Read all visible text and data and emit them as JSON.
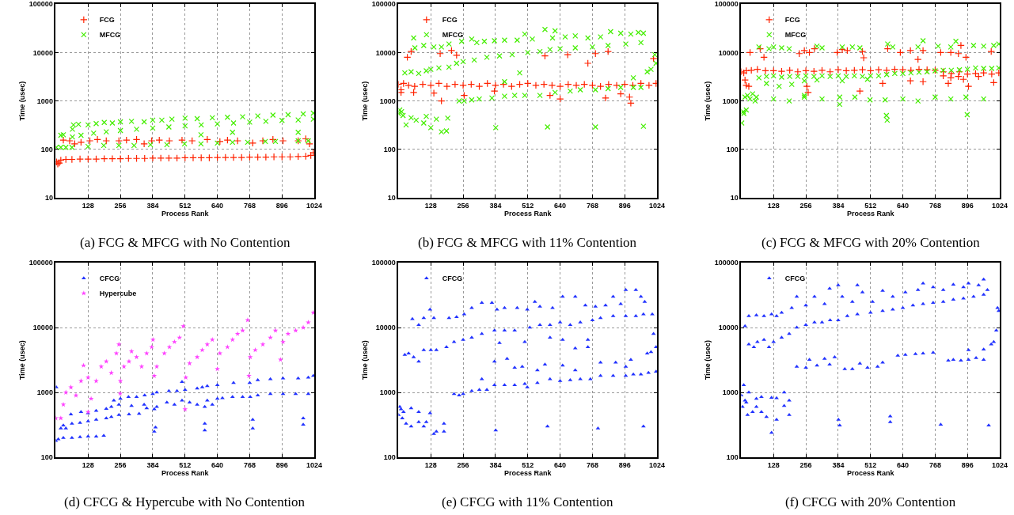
{
  "chart_data": [
    {
      "type": "scatter",
      "title": "(a) FCG & MFCG with No Contention",
      "xlabel": "Process Rank",
      "ylabel": "Time (usec)",
      "xlim": [
        0,
        1024
      ],
      "xticks": [
        128,
        256,
        384,
        512,
        640,
        768,
        896,
        1024
      ],
      "ylim": [
        10,
        100000
      ],
      "yticks": [
        10,
        100,
        1000,
        10000,
        100000
      ],
      "log": "y",
      "grid": true,
      "legend": "top left",
      "series": [
        {
          "name": "FCG",
          "color": "#ff2200",
          "marker": "cross",
          "x": [
            3,
            8,
            14,
            20,
            40,
            64,
            96,
            128,
            160,
            192,
            224,
            256,
            288,
            320,
            352,
            384,
            416,
            448,
            480,
            512,
            544,
            576,
            608,
            640,
            672,
            704,
            736,
            768,
            800,
            832,
            864,
            896,
            928,
            960,
            990,
            1010,
            1020,
            30,
            55,
            75,
            100,
            135,
            165,
            200,
            250,
            280,
            320,
            350,
            380,
            410,
            450,
            500,
            540,
            600,
            650,
            680,
            720,
            780,
            820,
            860,
            900,
            960,
            990,
            1005
          ],
          "values": [
            55,
            50,
            52,
            60,
            62,
            62,
            63,
            63,
            63,
            64,
            64,
            64,
            65,
            65,
            65,
            66,
            66,
            66,
            66,
            67,
            67,
            67,
            67,
            68,
            68,
            68,
            68,
            69,
            69,
            69,
            70,
            70,
            70,
            71,
            72,
            75,
            85,
            155,
            150,
            130,
            140,
            150,
            160,
            150,
            150,
            155,
            160,
            130,
            150,
            155,
            150,
            155,
            150,
            160,
            145,
            155,
            150,
            135,
            150,
            160,
            150,
            150,
            165,
            130
          ]
        },
        {
          "name": "MFCG",
          "color": "#44ee00",
          "marker": "x",
          "x": [
            2,
            20,
            40,
            64,
            20,
            30,
            66,
            100,
            150,
            200,
            256,
            320,
            384,
            448,
            512,
            576,
            640,
            704,
            768,
            832,
            896,
            960,
            1020,
            66,
            70,
            90,
            128,
            160,
            192,
            224,
            256,
            300,
            350,
            384,
            420,
            460,
            512,
            560,
            620,
            680,
            740,
            800,
            860,
            920,
            980,
            1020,
            128,
            190,
            250,
            310,
            375,
            440,
            510,
            575,
            640,
            700,
            760,
            830,
            870,
            960,
            1000,
            960,
            700,
            575
          ],
          "values": [
            110,
            110,
            110,
            110,
            195,
            200,
            180,
            195,
            215,
            230,
            245,
            260,
            275,
            290,
            305,
            320,
            335,
            350,
            365,
            380,
            395,
            405,
            420,
            260,
            320,
            330,
            320,
            340,
            360,
            350,
            370,
            380,
            370,
            400,
            400,
            420,
            440,
            430,
            450,
            460,
            470,
            490,
            510,
            520,
            540,
            560,
            115,
            120,
            120,
            120,
            125,
            125,
            130,
            130,
            135,
            140,
            140,
            145,
            145,
            150,
            150,
            225,
            225,
            200
          ]
        }
      ]
    },
    {
      "type": "scatter",
      "title": "(b) FCG & MFCG with 11% Contention",
      "xlabel": "Process Rank",
      "ylabel": "Time (usec)",
      "xlim": [
        0,
        1024
      ],
      "xticks": [
        128,
        256,
        384,
        512,
        640,
        768,
        896,
        1024
      ],
      "ylim": [
        10,
        100000
      ],
      "yticks": [
        10,
        100,
        1000,
        10000,
        100000
      ],
      "log": "y",
      "grid": true,
      "legend": "top left",
      "series": [
        {
          "name": "FCG",
          "color": "#ff2200",
          "marker": "cross",
          "x": [
            0,
            10,
            20,
            40,
            64,
            96,
            128,
            160,
            192,
            224,
            256,
            288,
            320,
            352,
            384,
            416,
            448,
            480,
            512,
            544,
            576,
            608,
            640,
            672,
            704,
            736,
            768,
            800,
            832,
            864,
            896,
            928,
            960,
            992,
            1020,
            10,
            60,
            140,
            170,
            260,
            380,
            600,
            640,
            820,
            880,
            915,
            920,
            35,
            50,
            165,
            210,
            230,
            580,
            670,
            750,
            780,
            830,
            1010
          ],
          "values": [
            2200,
            1700,
            2300,
            2100,
            2000,
            2200,
            2100,
            2300,
            2000,
            2200,
            2100,
            2200,
            2000,
            2300,
            2100,
            2200,
            2000,
            2200,
            2300,
            2100,
            2200,
            2100,
            2000,
            2200,
            2100,
            2200,
            2100,
            2000,
            2200,
            2100,
            2200,
            2100,
            2300,
            2100,
            2300,
            1500,
            1500,
            1450,
            1000,
            1300,
            1600,
            1300,
            1100,
            1150,
            1400,
            1200,
            900,
            8000,
            10500,
            9500,
            11000,
            8800,
            8500,
            9000,
            6000,
            9500,
            10500,
            7500
          ]
        },
        {
          "name": "MFCG",
          "color": "#44ee00",
          "marker": "x",
          "x": [
            0,
            5,
            12,
            18,
            30,
            50,
            70,
            100,
            110,
            128,
            150,
            170,
            190,
            195,
            25,
            50,
            80,
            110,
            128,
            160,
            200,
            230,
            256,
            300,
            350,
            400,
            450,
            512,
            560,
            600,
            640,
            700,
            768,
            830,
            900,
            960,
            985,
            1000,
            1020,
            1015,
            60,
            65,
            100,
            140,
            170,
            200,
            250,
            290,
            310,
            340,
            380,
            420,
            470,
            500,
            530,
            580,
            610,
            620,
            660,
            700,
            750,
            800,
            840,
            880,
            920,
            950,
            970,
            240,
            260,
            290,
            320,
            370,
            420,
            460,
            500,
            560,
            620,
            680,
            720,
            780,
            830,
            880,
            930,
            960,
            385,
            590,
            780,
            970,
            480,
            930,
            420
          ],
          "values": [
            550,
            650,
            600,
            500,
            320,
            450,
            400,
            350,
            480,
            280,
            420,
            230,
            240,
            440,
            3800,
            4000,
            3700,
            4200,
            4500,
            4800,
            5000,
            6000,
            6500,
            7000,
            8000,
            8500,
            9000,
            10000,
            10500,
            11500,
            12000,
            12500,
            13000,
            14000,
            15000,
            16000,
            4000,
            4500,
            6000,
            9000,
            20000,
            12500,
            14000,
            13000,
            13000,
            15000,
            17000,
            19000,
            16000,
            17000,
            17500,
            18000,
            18000,
            24000,
            19000,
            30000,
            20000,
            28000,
            21000,
            22000,
            20000,
            21000,
            27000,
            25000,
            24000,
            26000,
            25000,
            1000,
            1000,
            1050,
            1100,
            1150,
            1250,
            1300,
            1300,
            1300,
            1500,
            1600,
            1700,
            1700,
            1800,
            1900,
            1900,
            1900,
            280,
            290,
            290,
            300,
            3800,
            3000,
            2500
          ]
        }
      ]
    },
    {
      "type": "scatter",
      "title": "(c) FCG & MFCG with 20% Contention",
      "xlabel": "Process Rank",
      "ylabel": "Time (usec)",
      "xlim": [
        0,
        1024
      ],
      "xticks": [
        128,
        256,
        384,
        512,
        640,
        768,
        896,
        1024
      ],
      "ylim": [
        10,
        100000
      ],
      "yticks": [
        10,
        100,
        1000,
        10000,
        100000
      ],
      "log": "y",
      "grid": true,
      "legend": "top left",
      "series": [
        {
          "name": "FCG",
          "color": "#ff2200",
          "marker": "cross",
          "x": [
            0,
            10,
            20,
            40,
            64,
            96,
            128,
            160,
            192,
            224,
            256,
            288,
            320,
            352,
            384,
            416,
            448,
            480,
            512,
            544,
            576,
            608,
            640,
            672,
            704,
            736,
            768,
            800,
            832,
            864,
            896,
            928,
            960,
            992,
            1020,
            800,
            830,
            860,
            880,
            940,
            35,
            75,
            90,
            230,
            250,
            270,
            290,
            380,
            400,
            420,
            480,
            485,
            580,
            630,
            670,
            700,
            720,
            790,
            830,
            860,
            870,
            890,
            990,
            15,
            20,
            30,
            260,
            265,
            470,
            560,
            670,
            720,
            820,
            900,
            1000
          ],
          "values": [
            4000,
            3800,
            4200,
            4300,
            4500,
            4200,
            4200,
            4100,
            4300,
            4000,
            4200,
            4100,
            4300,
            4000,
            4400,
            4200,
            4300,
            4400,
            4200,
            4400,
            4300,
            4500,
            4400,
            4300,
            4500,
            4400,
            4300,
            4000,
            3700,
            4000,
            3600,
            3700,
            3800,
            3600,
            3800,
            3300,
            3000,
            3200,
            2800,
            3200,
            10000,
            12000,
            8000,
            9500,
            11000,
            10000,
            12000,
            10000,
            11500,
            11000,
            10500,
            7800,
            12000,
            10000,
            11000,
            7200,
            11000,
            10000,
            10000,
            9500,
            14000,
            8000,
            10500,
            2700,
            2100,
            2000,
            2000,
            1500,
            1600,
            2300,
            2600,
            2500,
            2300,
            2000,
            2400
          ]
        },
        {
          "name": "MFCG",
          "color": "#44ee00",
          "marker": "x",
          "x": [
            2,
            8,
            10,
            15,
            25,
            35,
            45,
            55,
            60,
            20,
            70,
            100,
            128,
            160,
            192,
            224,
            256,
            288,
            320,
            352,
            384,
            416,
            448,
            480,
            512,
            544,
            576,
            608,
            640,
            672,
            704,
            736,
            768,
            800,
            832,
            864,
            896,
            928,
            960,
            992,
            1020,
            100,
            150,
            200,
            250,
            300,
            400,
            500,
            250,
            70,
            110,
            128,
            160,
            190,
            300,
            320,
            400,
            440,
            470,
            580,
            600,
            700,
            720,
            780,
            830,
            850,
            920,
            960,
            1000,
            1020,
            128,
            190,
            250,
            320,
            390,
            450,
            510,
            570,
            640,
            700,
            768,
            830,
            890,
            960,
            575,
            578,
            895,
            390
          ],
          "values": [
            350,
            600,
            550,
            1200,
            1300,
            1100,
            1400,
            1000,
            1200,
            650,
            3000,
            3200,
            3300,
            3100,
            3200,
            3200,
            3300,
            3200,
            3300,
            3200,
            3300,
            3200,
            3300,
            3200,
            3300,
            3300,
            3500,
            3700,
            3700,
            3800,
            3900,
            4000,
            4200,
            4300,
            4300,
            4400,
            4500,
            4800,
            4700,
            4700,
            4800,
            2300,
            2000,
            2200,
            2600,
            2700,
            2600,
            2800,
            1300,
            13000,
            12000,
            13000,
            12500,
            12000,
            13500,
            12500,
            13000,
            13000,
            12500,
            15000,
            13000,
            13000,
            17500,
            13500,
            13000,
            17000,
            14000,
            13500,
            14000,
            15000,
            1100,
            1000,
            1200,
            1100,
            1200,
            1200,
            1050,
            1050,
            1100,
            1000,
            1200,
            1100,
            1200,
            1100,
            500,
            400,
            520,
            850
          ]
        }
      ]
    },
    {
      "type": "scatter",
      "title": "(d) CFCG & Hypercube with No Contention",
      "xlabel": "Process Rank",
      "ylabel": "Time (usec)",
      "xlim": [
        0,
        1024
      ],
      "xticks": [
        128,
        256,
        384,
        512,
        640,
        768,
        896,
        1024
      ],
      "ylim": [
        100,
        100000
      ],
      "yticks": [
        100,
        1000,
        10000,
        100000
      ],
      "log": "y",
      "grid": true,
      "legend": "top left",
      "series": [
        {
          "name": "CFCG",
          "color": "#2233ff",
          "marker": "triangle",
          "x": [
            2,
            0,
            10,
            30,
            64,
            96,
            128,
            160,
            190,
            30,
            64,
            96,
            128,
            160,
            200,
            220,
            20,
            40,
            60,
            100,
            128,
            160,
            200,
            220,
            230,
            256,
            288,
            320,
            352,
            384,
            400,
            448,
            480,
            512,
            560,
            580,
            600,
            640,
            704,
            768,
            800,
            850,
            900,
            960,
            1000,
            1020,
            250,
            290,
            330,
            360,
            250,
            300,
            350,
            390,
            400,
            440,
            470,
            500,
            530,
            560,
            590,
            600,
            620,
            640,
            660,
            700,
            740,
            770,
            800,
            850,
            900,
            950,
            1000,
            390,
            395,
            590,
            590,
            780,
            780,
            980,
            980,
            500
          ],
          "values": [
            1200,
            180,
            190,
            200,
            200,
            205,
            210,
            210,
            215,
            310,
            330,
            340,
            360,
            380,
            400,
            420,
            280,
            280,
            460,
            500,
            480,
            520,
            560,
            600,
            750,
            800,
            850,
            850,
            900,
            950,
            1000,
            1050,
            1050,
            1100,
            1150,
            1200,
            1250,
            1300,
            1400,
            1400,
            1550,
            1600,
            1650,
            1650,
            1700,
            1800,
            450,
            460,
            470,
            570,
            650,
            620,
            650,
            550,
            600,
            700,
            650,
            750,
            700,
            650,
            600,
            750,
            650,
            800,
            820,
            850,
            850,
            850,
            900,
            950,
            950,
            950,
            950,
            250,
            290,
            330,
            260,
            380,
            280,
            400,
            320,
            1450
          ]
        },
        {
          "name": "Hypercube",
          "color": "#ff44ff",
          "marker": "star",
          "x": [
            0,
            20,
            30,
            40,
            60,
            80,
            100,
            110,
            128,
            140,
            128,
            160,
            180,
            200,
            220,
            240,
            250,
            255,
            256,
            270,
            290,
            320,
            300,
            340,
            360,
            380,
            385,
            390,
            400,
            430,
            450,
            470,
            490,
            505,
            512,
            515,
            530,
            560,
            580,
            600,
            620,
            640,
            650,
            680,
            700,
            720,
            740,
            760,
            765,
            770,
            790,
            820,
            850,
            870,
            890,
            900,
            920,
            950,
            980,
            1000,
            1020
          ],
          "values": [
            400,
            400,
            650,
            1000,
            1200,
            900,
            1500,
            2600,
            1700,
            800,
            500,
            1500,
            2500,
            3000,
            2000,
            4000,
            5500,
            960,
            1500,
            2500,
            3000,
            3500,
            4300,
            2500,
            4000,
            5000,
            6500,
            1800,
            2500,
            4000,
            5000,
            6000,
            7000,
            10500,
            550,
            1700,
            2800,
            3500,
            4500,
            5500,
            6500,
            2300,
            4000,
            5000,
            6500,
            8000,
            9000,
            13000,
            1800,
            3500,
            4500,
            5500,
            7000,
            9000,
            3200,
            6000,
            8000,
            9000,
            10000,
            12000,
            17000
          ]
        }
      ]
    },
    {
      "type": "scatter",
      "title": "(e) CFCG with 11% Contention",
      "xlabel": "Process Rank",
      "ylabel": "Time (usec)",
      "xlim": [
        0,
        1024
      ],
      "xticks": [
        128,
        256,
        384,
        512,
        640,
        768,
        896,
        1024
      ],
      "ylim": [
        100,
        100000
      ],
      "yticks": [
        100,
        1000,
        10000,
        100000
      ],
      "log": "y",
      "grid": true,
      "legend": "top left",
      "series": [
        {
          "name": "CFCG",
          "color": "#2233ff",
          "marker": "triangle",
          "x": [
            0,
            5,
            10,
            15,
            20,
            30,
            50,
            50,
            80,
            80,
            100,
            110,
            125,
            140,
            150,
            180,
            180,
            25,
            40,
            60,
            80,
            100,
            128,
            150,
            190,
            220,
            256,
            290,
            330,
            380,
            420,
            460,
            520,
            560,
            600,
            640,
            680,
            720,
            768,
            800,
            850,
            900,
            940,
            970,
            985,
            1000,
            1020,
            1010,
            1005,
            55,
            80,
            100,
            125,
            140,
            200,
            230,
            260,
            290,
            330,
            370,
            390,
            420,
            470,
            510,
            540,
            560,
            610,
            650,
            700,
            740,
            780,
            820,
            850,
            880,
            900,
            940,
            960,
            975,
            220,
            240,
            256,
            290,
            320,
            350,
            380,
            420,
            460,
            500,
            510,
            550,
            600,
            640,
            680,
            720,
            760,
            800,
            850,
            900,
            930,
            960,
            990,
            1020,
            330,
            380,
            430,
            460,
            490,
            550,
            580,
            650,
            700,
            750,
            800,
            860,
            900,
            920,
            400,
            500,
            600,
            650,
            700,
            750,
            385,
            590,
            790,
            970
          ],
          "values": [
            450,
            600,
            550,
            400,
            500,
            330,
            570,
            300,
            500,
            350,
            300,
            350,
            480,
            230,
            250,
            330,
            250,
            3800,
            4000,
            3500,
            3000,
            4500,
            4500,
            4500,
            5000,
            6000,
            6500,
            7000,
            8000,
            9000,
            9000,
            9000,
            10000,
            11000,
            11000,
            12000,
            11000,
            12000,
            13000,
            14000,
            15000,
            15000,
            15000,
            16000,
            4000,
            4200,
            5000,
            8000,
            16000,
            13500,
            11000,
            14000,
            19000,
            14000,
            14000,
            14500,
            16000,
            20000,
            24000,
            24000,
            19000,
            20000,
            20000,
            19000,
            25000,
            21000,
            20000,
            30000,
            30000,
            22000,
            21000,
            22000,
            30000,
            23000,
            38000,
            38000,
            30000,
            25000,
            950,
            900,
            950,
            1050,
            1100,
            1100,
            1300,
            1300,
            1300,
            1350,
            1200,
            1400,
            1600,
            1500,
            1550,
            1600,
            1600,
            1800,
            1800,
            1800,
            1900,
            1900,
            2000,
            2100,
            1600,
            3000,
            3300,
            2400,
            2500,
            2200,
            2700,
            2600,
            2200,
            5000,
            2900,
            2900,
            2500,
            3200,
            5800,
            6000,
            7000,
            6500,
            4800,
            6500,
            260,
            300,
            280,
            300
          ]
        }
      ]
    },
    {
      "type": "scatter",
      "title": "(f) CFCG with 20% Contention",
      "xlabel": "Process Rank",
      "ylabel": "Time (usec)",
      "xlim": [
        0,
        1024
      ],
      "xticks": [
        128,
        256,
        384,
        512,
        640,
        768,
        896,
        1024
      ],
      "ylim": [
        100,
        100000
      ],
      "yticks": [
        100,
        1000,
        10000,
        100000
      ],
      "log": "y",
      "grid": true,
      "legend": "top left",
      "series": [
        {
          "name": "CFCG",
          "color": "#2233ff",
          "marker": "triangle",
          "x": [
            0,
            5,
            10,
            15,
            20,
            25,
            30,
            45,
            60,
            60,
            80,
            80,
            100,
            120,
            120,
            140,
            140,
            170,
            170,
            190,
            190,
            30,
            50,
            64,
            90,
            110,
            128,
            160,
            190,
            220,
            256,
            290,
            320,
            352,
            384,
            420,
            460,
            512,
            560,
            600,
            640,
            680,
            720,
            760,
            800,
            840,
            880,
            920,
            960,
            975,
            990,
            1000,
            1010,
            1015,
            1020,
            15,
            30,
            60,
            90,
            120,
            140,
            160,
            200,
            220,
            256,
            290,
            330,
            350,
            384,
            400,
            440,
            460,
            480,
            520,
            560,
            600,
            650,
            700,
            720,
            760,
            800,
            840,
            880,
            900,
            940,
            960,
            220,
            256,
            270,
            300,
            330,
            350,
            370,
            410,
            440,
            470,
            500,
            540,
            560,
            620,
            650,
            690,
            720,
            760,
            820,
            840,
            870,
            900,
            900,
            930,
            960,
            960,
            385,
            390,
            590,
            590,
            790,
            980
          ],
          "values": [
            900,
            600,
            1300,
            750,
            700,
            450,
            1000,
            500,
            800,
            600,
            850,
            500,
            420,
            830,
            240,
            820,
            380,
            1000,
            620,
            750,
            450,
            5500,
            5000,
            6000,
            6500,
            5000,
            6000,
            7000,
            8000,
            10000,
            11000,
            12000,
            12000,
            13000,
            13000,
            15000,
            16000,
            17000,
            18000,
            19000,
            20000,
            22000,
            23000,
            24000,
            25000,
            27000,
            28000,
            30000,
            32000,
            38000,
            5500,
            6000,
            9000,
            20000,
            18000,
            10500,
            15000,
            15500,
            15000,
            16000,
            15000,
            17000,
            20000,
            30000,
            22000,
            30000,
            23000,
            40000,
            45000,
            30000,
            25000,
            45000,
            35000,
            25000,
            37000,
            30000,
            35000,
            38000,
            48000,
            42000,
            38000,
            46000,
            42000,
            48000,
            45000,
            55000,
            2500,
            2400,
            3200,
            2600,
            3300,
            2700,
            3500,
            2300,
            2300,
            2800,
            2400,
            2500,
            2900,
            3700,
            3800,
            3900,
            4000,
            4100,
            3100,
            3200,
            3100,
            4500,
            3200,
            3400,
            4600,
            3200,
            380,
            310,
            430,
            350,
            320,
            310
          ]
        }
      ]
    }
  ]
}
